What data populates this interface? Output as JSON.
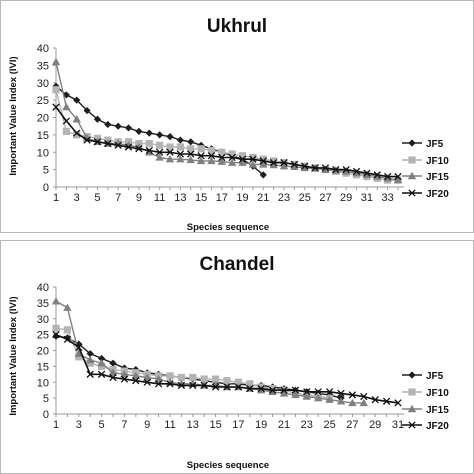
{
  "chart_data": [
    {
      "type": "line",
      "title": "Ukhrul",
      "xlabel": "Species sequence",
      "ylabel": "Important Value Index (IVI)",
      "ylim": [
        0,
        40
      ],
      "yticks": [
        0,
        5,
        10,
        15,
        20,
        25,
        30,
        35,
        40
      ],
      "xlim": [
        1,
        34
      ],
      "xticks": [
        1,
        3,
        5,
        7,
        9,
        11,
        13,
        15,
        17,
        19,
        21,
        23,
        25,
        27,
        29,
        31,
        33
      ],
      "grid": false,
      "legend": "right",
      "series": [
        {
          "name": "JF5",
          "marker": "diamond",
          "color": "#1e1e1e",
          "values": [
            29,
            26.5,
            25,
            22,
            19.5,
            18,
            17.5,
            17,
            16,
            15.5,
            15,
            14.5,
            13.5,
            13,
            12,
            11,
            10,
            9,
            8,
            6,
            3.5
          ]
        },
        {
          "name": "JF10",
          "marker": "square",
          "color": "#b4b4b4",
          "values": [
            28,
            16,
            15,
            14.5,
            14,
            13.5,
            13,
            13,
            12.5,
            12.5,
            12,
            11.5,
            11.5,
            11,
            11,
            10.5,
            10,
            9.5,
            9,
            8.5,
            8,
            7.5,
            7,
            6.5,
            6,
            5.5,
            5,
            4.5,
            4,
            3.5,
            3,
            2.5,
            2,
            2
          ]
        },
        {
          "name": "JF15",
          "marker": "triangle",
          "color": "#808080",
          "values": [
            36,
            23,
            19.5,
            14,
            13,
            12.5,
            12.5,
            12,
            11.5,
            10,
            8.5,
            8,
            8,
            7.8,
            7.5,
            7.5,
            7.3,
            7,
            7,
            6.5,
            6.5,
            6.3,
            6,
            5.8,
            5.5,
            5.3,
            5,
            4.8,
            4.5,
            4,
            3.5,
            3,
            2.5,
            2
          ]
        },
        {
          "name": "JF20",
          "marker": "x",
          "color": "#111111",
          "values": [
            23,
            19,
            15.5,
            13.5,
            13,
            12.5,
            12,
            11.5,
            11,
            10.5,
            10,
            10,
            9.5,
            9.5,
            9,
            9,
            8.5,
            8.5,
            8,
            8,
            7.5,
            7,
            7,
            6.5,
            6,
            5.5,
            5.5,
            5,
            5,
            4.5,
            4,
            3.5,
            3,
            3
          ]
        }
      ]
    },
    {
      "type": "line",
      "title": "Chandel",
      "xlabel": "Species sequence",
      "ylabel": "Important Value Index (IVI)",
      "ylim": [
        0,
        40
      ],
      "yticks": [
        0,
        5,
        10,
        15,
        20,
        25,
        30,
        35,
        40
      ],
      "xlim": [
        1,
        31
      ],
      "xticks": [
        1,
        3,
        5,
        7,
        9,
        11,
        13,
        15,
        17,
        19,
        21,
        23,
        25,
        27,
        29,
        31
      ],
      "grid": false,
      "legend": "right",
      "series": [
        {
          "name": "JF5",
          "marker": "diamond",
          "color": "#1e1e1e",
          "values": [
            24.5,
            24,
            22,
            19,
            17.5,
            16,
            14.5,
            14,
            13,
            12.5,
            12,
            11.5,
            11,
            10.5,
            10,
            9.5,
            9.5,
            9,
            9,
            8.5,
            8,
            7.5,
            7,
            6.5,
            6,
            5
          ]
        },
        {
          "name": "JF10",
          "marker": "square",
          "color": "#b4b4b4",
          "values": [
            27,
            26.5,
            18,
            16,
            15,
            14,
            13.5,
            13,
            12.5,
            12,
            12,
            11.5,
            11.5,
            11,
            11,
            10.5,
            10,
            9.5,
            8.5,
            8,
            7.5,
            6.5,
            6,
            5.5,
            5
          ]
        },
        {
          "name": "JF15",
          "marker": "triangle",
          "color": "#808080",
          "values": [
            35.5,
            33.5,
            19,
            17,
            16,
            13,
            12.5,
            12,
            11.5,
            11,
            10,
            9.5,
            9.5,
            9,
            9,
            8.5,
            8.5,
            8,
            7.5,
            7,
            6.5,
            6,
            5.5,
            5,
            4.5,
            4,
            3.5,
            3.5
          ]
        },
        {
          "name": "JF20",
          "marker": "x",
          "color": "#111111",
          "values": [
            25,
            23.5,
            21,
            12.5,
            12.5,
            11.5,
            11,
            10.5,
            10,
            9.5,
            9.5,
            9,
            9,
            9,
            8.5,
            8.5,
            8.5,
            8,
            8,
            7.5,
            7.5,
            7.5,
            7,
            7,
            7,
            6.5,
            6,
            5.5,
            4.5,
            4,
            3.5
          ]
        }
      ]
    }
  ]
}
